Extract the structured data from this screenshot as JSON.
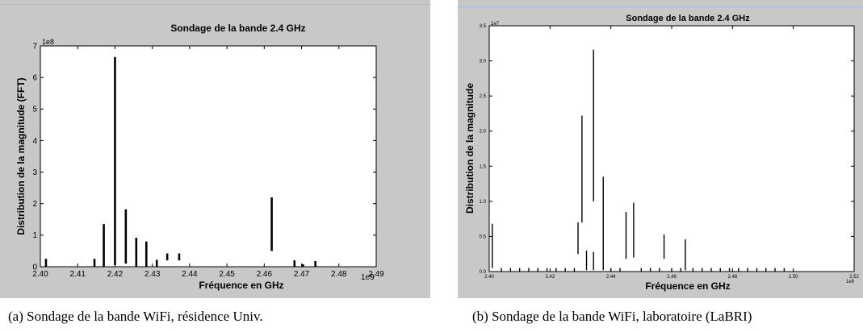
{
  "chart_data": [
    {
      "type": "bar",
      "title": "Sondage de la bande 2.4 GHz",
      "xlabel": "Fréquence en GHz",
      "ylabel": "Distribution de la magnitude (FFT)",
      "x_ticks": [
        "2.40",
        "2.41",
        "2.42",
        "2.43",
        "2.44",
        "2.45",
        "2.46",
        "2.47",
        "2.48",
        "2.49"
      ],
      "y_ticks": [
        "0",
        "1",
        "2",
        "3",
        "4",
        "5",
        "6",
        "7"
      ],
      "x_exponent": "1e9",
      "y_exponent": "1e8",
      "xlim": [
        2.4,
        2.49
      ],
      "ylim": [
        0,
        7
      ],
      "grid": false,
      "bars": [
        {
          "x": 2.4015,
          "low": 0.0,
          "high": 0.25
        },
        {
          "x": 2.4145,
          "low": 0.0,
          "high": 0.25
        },
        {
          "x": 2.417,
          "low": 0.0,
          "high": 1.35
        },
        {
          "x": 2.42,
          "low": 0.05,
          "high": 6.65
        },
        {
          "x": 2.4229,
          "low": 0.1,
          "high": 1.82
        },
        {
          "x": 2.4257,
          "low": 0.0,
          "high": 0.92
        },
        {
          "x": 2.4284,
          "low": 0.0,
          "high": 0.8
        },
        {
          "x": 2.4312,
          "low": 0.0,
          "high": 0.22
        },
        {
          "x": 2.434,
          "low": 0.2,
          "high": 0.42
        },
        {
          "x": 2.4372,
          "low": 0.2,
          "high": 0.42
        },
        {
          "x": 2.462,
          "low": 0.5,
          "high": 2.2
        },
        {
          "x": 2.4681,
          "low": 0.0,
          "high": 0.2
        },
        {
          "x": 2.4704,
          "low": 0.0,
          "high": 0.08
        },
        {
          "x": 2.4737,
          "low": 0.0,
          "high": 0.18
        }
      ]
    },
    {
      "type": "bar",
      "title": "Sondage de la bande 2.4 GHz",
      "xlabel": "Fréquence en GHz",
      "ylabel": "Distribution de la magnitude",
      "x_ticks": [
        "2.40",
        "2.42",
        "2.44",
        "2.46",
        "2.48",
        "2.50",
        "2.52"
      ],
      "y_ticks": [
        "0.0",
        "0.5",
        "1.0",
        "1.5",
        "2.0",
        "2.5",
        "3.0",
        "3.5"
      ],
      "x_exponent": "1e9",
      "y_exponent": "1e7",
      "xlim": [
        2.4,
        2.52
      ],
      "ylim": [
        0,
        3.5
      ],
      "grid": false,
      "bars": [
        {
          "x": 2.401,
          "low": 0.05,
          "high": 0.68
        },
        {
          "x": 2.4292,
          "low": 0.25,
          "high": 0.7
        },
        {
          "x": 2.4305,
          "low": 0.7,
          "high": 2.22
        },
        {
          "x": 2.432,
          "low": 0.02,
          "high": 0.3
        },
        {
          "x": 2.4343,
          "low": 1.0,
          "high": 3.16
        },
        {
          "x": 2.4343,
          "low": 0.02,
          "high": 0.28
        },
        {
          "x": 2.4375,
          "low": 0.02,
          "high": 1.35
        },
        {
          "x": 2.445,
          "low": 0.18,
          "high": 0.85
        },
        {
          "x": 2.4475,
          "low": 0.2,
          "high": 0.98
        },
        {
          "x": 2.4575,
          "low": 0.18,
          "high": 0.53
        },
        {
          "x": 2.4645,
          "low": 0.02,
          "high": 0.46
        }
      ],
      "small_ticks_x": [
        2.404,
        2.407,
        2.41,
        2.413,
        2.416,
        2.419,
        2.422,
        2.425,
        2.428,
        2.44,
        2.443,
        2.45,
        2.453,
        2.456,
        2.46,
        2.463,
        2.467,
        2.47,
        2.473,
        2.476,
        2.479,
        2.482,
        2.485,
        2.488,
        2.491,
        2.494,
        2.497
      ]
    }
  ],
  "captions": {
    "a": "(a)  Sondage de la bande WiFi, résidence Univ.",
    "b": "(b)  Sondage de la bande WiFi, laboratoire (LaBRI)"
  }
}
